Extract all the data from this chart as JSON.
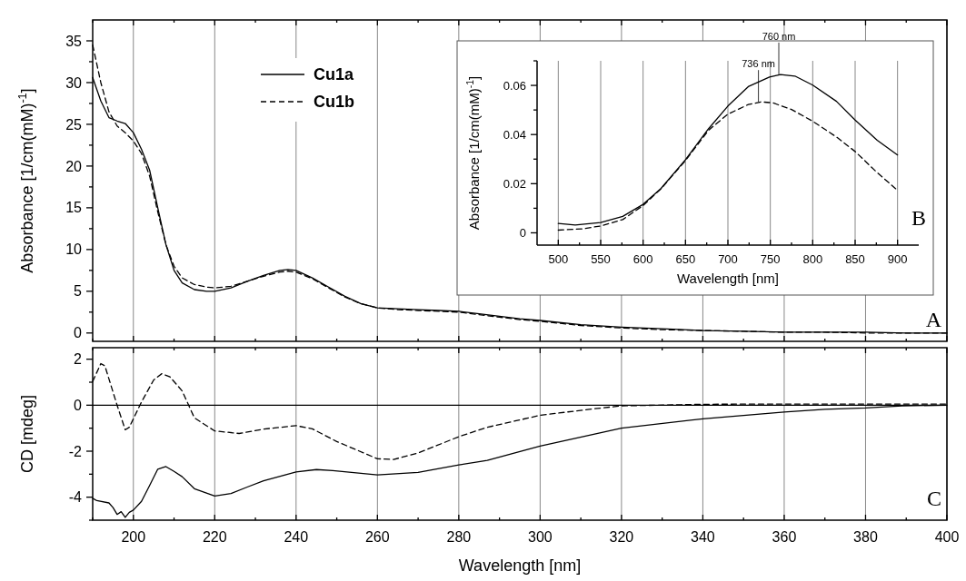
{
  "chart_data": [
    {
      "type": "line",
      "ylabel": "Absorbance [1/cm(mM)$^{-1}$]",
      "xlim": [
        190,
        400
      ],
      "ylim": [
        -1,
        37.5
      ],
      "xticks": [
        {
          "value": 190,
          "label": null
        },
        200,
        {
          "value": 210,
          "label": null
        },
        220,
        {
          "value": 230,
          "label": null
        },
        240,
        {
          "value": 250,
          "label": null
        },
        260,
        {
          "value": 270,
          "label": null
        },
        280,
        {
          "value": 290,
          "label": null
        },
        300,
        {
          "value": 310,
          "label": null
        },
        320,
        {
          "value": 330,
          "label": null
        },
        340,
        {
          "value": 350,
          "label": null
        },
        360,
        {
          "value": 370,
          "label": null
        },
        380,
        {
          "value": 390,
          "label": null
        },
        400
      ],
      "yticks": [
        0,
        {
          "value": 2.5,
          "label": null
        },
        5,
        {
          "value": 7.5,
          "label": null
        },
        10,
        {
          "value": 12.5,
          "label": null
        },
        15,
        {
          "value": 17.5,
          "label": null
        },
        20,
        {
          "value": 22.5,
          "label": null
        },
        25,
        {
          "value": 27.5,
          "label": null
        },
        30,
        {
          "value": 32.5,
          "label": null
        },
        35
      ],
      "tick_labels": "y",
      "grid": "x",
      "legend": "top left",
      "annotations": [
        "A"
      ],
      "series": [
        {
          "name": "Cu1a",
          "color": "#000000",
          "line_style": "solid",
          "x": [
            190,
            192,
            194,
            196,
            198,
            200,
            202,
            204,
            206,
            208,
            210,
            212,
            215,
            218,
            220,
            224,
            228,
            232,
            236,
            238,
            240,
            244,
            248,
            252,
            256,
            260,
            265,
            270,
            275,
            280,
            285,
            290,
            295,
            300,
            310,
            320,
            330,
            340,
            350,
            360,
            370,
            380,
            390,
            400
          ],
          "values": [
            30.6,
            27.8,
            25.8,
            25.4,
            25.1,
            24.0,
            22.0,
            19.5,
            15.0,
            10.6,
            7.5,
            6.0,
            5.2,
            5.0,
            5.0,
            5.4,
            6.2,
            6.9,
            7.5,
            7.6,
            7.5,
            6.6,
            5.5,
            4.4,
            3.5,
            3.0,
            2.9,
            2.8,
            2.7,
            2.6,
            2.3,
            2.0,
            1.7,
            1.5,
            1.0,
            0.7,
            0.5,
            0.3,
            0.2,
            0.1,
            0.1,
            0.1,
            0.0,
            0.0
          ]
        },
        {
          "name": "Cu1b",
          "color": "#000000",
          "line_style": "dashed",
          "x": [
            190,
            192,
            194,
            196,
            198,
            200,
            202,
            204,
            206,
            208,
            210,
            212,
            215,
            218,
            220,
            224,
            228,
            232,
            236,
            238,
            240,
            244,
            248,
            252,
            256,
            260,
            265,
            270,
            275,
            280,
            285,
            290,
            295,
            300,
            310,
            320,
            330,
            340,
            350,
            360,
            370,
            380,
            390,
            400
          ],
          "values": [
            34.5,
            30.0,
            26.5,
            24.8,
            24.0,
            23.0,
            21.5,
            18.8,
            14.5,
            10.6,
            8.0,
            6.6,
            5.8,
            5.5,
            5.4,
            5.6,
            6.2,
            6.8,
            7.3,
            7.4,
            7.3,
            6.5,
            5.4,
            4.3,
            3.5,
            3.0,
            2.8,
            2.7,
            2.6,
            2.5,
            2.2,
            1.9,
            1.6,
            1.4,
            0.9,
            0.6,
            0.4,
            0.3,
            0.2,
            0.1,
            0.1,
            0.0,
            0.0,
            0.0
          ]
        }
      ]
    },
    {
      "type": "line",
      "xlabel": "Wavelength [nm]",
      "ylabel": "Absorbance [1/cm(mM)$^{-1}$]",
      "xlim": [
        475,
        925
      ],
      "ylim": [
        -0.005,
        0.07
      ],
      "xticks": [
        500,
        {
          "value": 525,
          "label": null
        },
        550,
        {
          "value": 575,
          "label": null
        },
        600,
        {
          "value": 625,
          "label": null
        },
        650,
        {
          "value": 675,
          "label": null
        },
        700,
        {
          "value": 725,
          "label": null
        },
        750,
        {
          "value": 775,
          "label": null
        },
        800,
        {
          "value": 825,
          "label": null
        },
        850,
        {
          "value": 875,
          "label": null
        },
        900
      ],
      "yticks": [
        {
          "value": 0,
          "label": "0"
        },
        {
          "value": 0.01,
          "label": null
        },
        {
          "value": 0.02,
          "label": "0.02"
        },
        {
          "value": 0.03,
          "label": null
        },
        {
          "value": 0.04,
          "label": "0.04"
        },
        {
          "value": 0.05,
          "label": null
        },
        {
          "value": 0.06,
          "label": "0.06"
        },
        {
          "value": 0.07,
          "label": null
        }
      ],
      "grid": "x",
      "annotations": [
        "B",
        {
          "text": "760 nm",
          "x": 760,
          "y": 0.0645
        },
        {
          "text": "736 nm",
          "x": 736,
          "y": 0.0533
        }
      ],
      "series": [
        {
          "color": "#000000",
          "line_style": "solid",
          "x": [
            500,
            520,
            550,
            576,
            600,
            621,
            650,
            677,
            700,
            724,
            749,
            762,
            779,
            800,
            828,
            850,
            876,
            900
          ],
          "values": [
            0.0038,
            0.0032,
            0.0042,
            0.0067,
            0.0116,
            0.018,
            0.0298,
            0.0423,
            0.0516,
            0.0595,
            0.0634,
            0.0644,
            0.0638,
            0.0601,
            0.0535,
            0.0459,
            0.0377,
            0.0317
          ]
        },
        {
          "color": "#000000",
          "line_style": "dashed",
          "x": [
            500,
            528,
            550,
            576,
            600,
            621,
            650,
            677,
            700,
            724,
            739,
            753,
            775,
            800,
            828,
            850,
            876,
            900
          ],
          "values": [
            0.0011,
            0.0016,
            0.0028,
            0.0054,
            0.0111,
            0.0179,
            0.0294,
            0.0417,
            0.0483,
            0.0522,
            0.0533,
            0.0529,
            0.0502,
            0.0454,
            0.039,
            0.0331,
            0.0245,
            0.0173
          ]
        }
      ]
    },
    {
      "type": "line",
      "xlabel": "Wavelength [nm]",
      "ylabel": "CD [mdeg]",
      "xlim": [
        190,
        400
      ],
      "ylim": [
        -5,
        2.5
      ],
      "xticks": [
        {
          "value": 190,
          "label": null
        },
        200,
        {
          "value": 210,
          "label": null
        },
        220,
        {
          "value": 230,
          "label": null
        },
        240,
        {
          "value": 250,
          "label": null
        },
        260,
        {
          "value": 270,
          "label": null
        },
        280,
        {
          "value": 290,
          "label": null
        },
        300,
        {
          "value": 310,
          "label": null
        },
        320,
        {
          "value": 330,
          "label": null
        },
        340,
        {
          "value": 350,
          "label": null
        },
        360,
        {
          "value": 370,
          "label": null
        },
        380,
        {
          "value": 390,
          "label": null
        },
        400
      ],
      "yticks": [
        {
          "value": -5,
          "label": null
        },
        -4,
        {
          "value": -3,
          "label": null
        },
        -2,
        {
          "value": -1,
          "label": null
        },
        0,
        {
          "value": 1,
          "label": null
        },
        2
      ],
      "grid": "x",
      "annotations": [
        "C"
      ],
      "ref_lines": [
        {
          "axis": "y",
          "value": 0,
          "color": "#000000"
        }
      ],
      "series": [
        {
          "color": "#000000",
          "line_style": "solid",
          "x": [
            190,
            191,
            194,
            195,
            196,
            197,
            198,
            199,
            200,
            202,
            204,
            206,
            208,
            210,
            212,
            215,
            220,
            224,
            228,
            232,
            240,
            245,
            249,
            260,
            270,
            280,
            287,
            300,
            320,
            340,
            360,
            370,
            380,
            389,
            400
          ],
          "values": [
            -4.05,
            -4.15,
            -4.25,
            -4.45,
            -4.75,
            -4.63,
            -4.88,
            -4.66,
            -4.56,
            -4.18,
            -3.49,
            -2.78,
            -2.67,
            -2.88,
            -3.11,
            -3.63,
            -3.95,
            -3.84,
            -3.56,
            -3.29,
            -2.9,
            -2.8,
            -2.84,
            -3.03,
            -2.92,
            -2.6,
            -2.4,
            -1.78,
            -1.0,
            -0.59,
            -0.3,
            -0.18,
            -0.12,
            -0.03,
            0.0
          ]
        },
        {
          "color": "#000000",
          "line_style": "dashed",
          "x": [
            190,
            192,
            193,
            196,
            198,
            199,
            202,
            205,
            207,
            209,
            212,
            215,
            220,
            226,
            232,
            240,
            244,
            250,
            260,
            264,
            270,
            280,
            287,
            300,
            313,
            320,
            340,
            360,
            380,
            400
          ],
          "values": [
            1.03,
            1.81,
            1.71,
            0,
            -1.07,
            -0.96,
            0.14,
            1.1,
            1.37,
            1.23,
            0.62,
            -0.55,
            -1.12,
            -1.23,
            -1.04,
            -0.89,
            -1.03,
            -1.58,
            -2.33,
            -2.36,
            -2.08,
            -1.37,
            -0.96,
            -0.44,
            -0.16,
            -0.03,
            0.04,
            0.05,
            0.05,
            0.05
          ]
        }
      ]
    }
  ]
}
